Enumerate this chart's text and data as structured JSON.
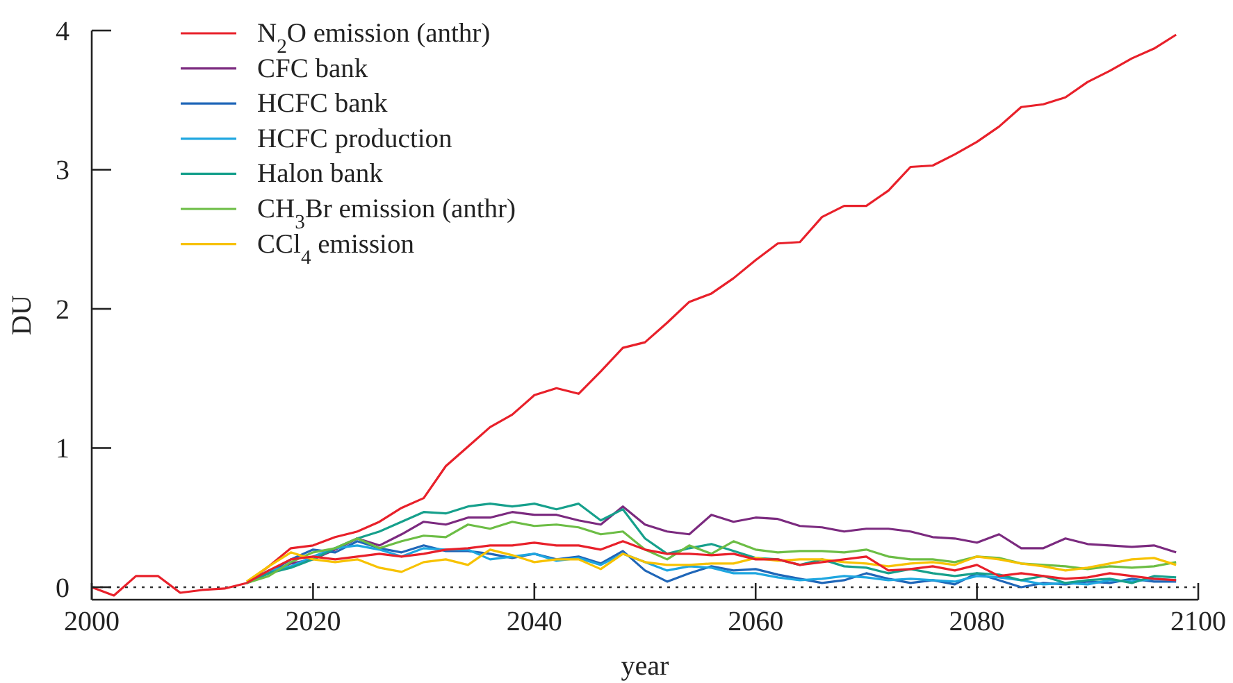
{
  "chart_data": {
    "type": "line",
    "xlabel": "year",
    "ylabel": "DU",
    "x": [
      2000,
      2002,
      2004,
      2006,
      2008,
      2010,
      2012,
      2014,
      2016,
      2018,
      2020,
      2022,
      2024,
      2026,
      2028,
      2030,
      2032,
      2034,
      2036,
      2038,
      2040,
      2042,
      2044,
      2046,
      2048,
      2050,
      2052,
      2054,
      2056,
      2058,
      2060,
      2062,
      2064,
      2066,
      2068,
      2070,
      2072,
      2074,
      2076,
      2078,
      2080,
      2082,
      2084,
      2086,
      2088,
      2090,
      2092,
      2094,
      2096,
      2098
    ],
    "series": [
      {
        "name": "N$_{2}$O emission (anthr)",
        "color": "#e8202a",
        "values": [
          0,
          -0.06,
          0.08,
          0.08,
          -0.04,
          -0.02,
          -0.01,
          0.03,
          0.15,
          0.28,
          0.3,
          0.36,
          0.4,
          0.47,
          0.57,
          0.64,
          0.87,
          1.01,
          1.15,
          1.24,
          1.38,
          1.43,
          1.39,
          1.55,
          1.72,
          1.76,
          1.9,
          2.05,
          2.11,
          2.22,
          2.35,
          2.47,
          2.48,
          2.66,
          2.74,
          2.74,
          2.85,
          3.02,
          3.03,
          3.11,
          3.2,
          3.31,
          3.45,
          3.47,
          3.52,
          3.63,
          3.71,
          3.8,
          3.87,
          3.97
        ]
      },
      {
        "name": "CFC bank",
        "color": "#7b2a7f",
        "values": [
          null,
          null,
          null,
          null,
          null,
          null,
          null,
          0.03,
          0.1,
          0.17,
          0.2,
          0.27,
          0.35,
          0.3,
          0.38,
          0.47,
          0.45,
          0.5,
          0.5,
          0.54,
          0.52,
          0.52,
          0.48,
          0.45,
          0.58,
          0.45,
          0.4,
          0.38,
          0.52,
          0.47,
          0.5,
          0.49,
          0.44,
          0.43,
          0.4,
          0.42,
          0.42,
          0.4,
          0.36,
          0.35,
          0.32,
          0.38,
          0.28,
          0.28,
          0.35,
          0.31,
          0.3,
          0.29,
          0.3,
          0.25
        ]
      },
      {
        "name": "HCFC bank",
        "color": "#1f66b8",
        "values": [
          null,
          null,
          null,
          null,
          null,
          null,
          null,
          0.03,
          0.1,
          0.2,
          0.27,
          0.25,
          0.33,
          0.28,
          0.25,
          0.3,
          0.26,
          0.26,
          0.24,
          0.21,
          0.24,
          0.2,
          0.22,
          0.17,
          0.26,
          0.12,
          0.04,
          0.1,
          0.15,
          0.12,
          0.13,
          0.09,
          0.06,
          0.03,
          0.05,
          0.1,
          0.06,
          0.03,
          0.05,
          0.02,
          0.1,
          0.05,
          0,
          0.03,
          0.02,
          0.04,
          0.03,
          0.06,
          0.04,
          0.04
        ]
      },
      {
        "name": "HCFC production",
        "color": "#1ea6e0",
        "values": [
          null,
          null,
          null,
          null,
          null,
          null,
          null,
          0.03,
          0.12,
          0.15,
          0.22,
          0.28,
          0.3,
          0.27,
          0.22,
          0.28,
          0.27,
          0.27,
          0.2,
          0.22,
          0.24,
          0.19,
          0.21,
          0.16,
          0.24,
          0.18,
          0.12,
          0.15,
          0.14,
          0.1,
          0.1,
          0.07,
          0.05,
          0.06,
          0.08,
          0.07,
          0.05,
          0.06,
          0.05,
          0.04,
          0.08,
          0.07,
          0.05,
          0.02,
          0.03,
          0.02,
          0.05,
          0.04,
          0.06,
          0.05
        ]
      },
      {
        "name": "Halon bank",
        "color": "#16a08c",
        "values": [
          null,
          null,
          null,
          null,
          null,
          null,
          null,
          0.03,
          0.1,
          0.14,
          0.2,
          0.28,
          0.35,
          0.4,
          0.47,
          0.54,
          0.53,
          0.58,
          0.6,
          0.58,
          0.6,
          0.56,
          0.6,
          0.48,
          0.56,
          0.35,
          0.24,
          0.28,
          0.31,
          0.26,
          0.21,
          0.2,
          0.16,
          0.2,
          0.15,
          0.14,
          0.1,
          0.13,
          0.1,
          0.08,
          0.1,
          0.09,
          0.05,
          0.08,
          0.03,
          0.05,
          0.06,
          0.03,
          0.08,
          0.07
        ]
      },
      {
        "name": "CH$_{3}$Br emission (anthr)",
        "color": "#6cbd45",
        "values": [
          null,
          null,
          null,
          null,
          null,
          null,
          null,
          0.03,
          0.08,
          0.18,
          0.25,
          0.28,
          0.35,
          0.28,
          0.33,
          0.37,
          0.36,
          0.45,
          0.42,
          0.47,
          0.44,
          0.45,
          0.43,
          0.38,
          0.4,
          0.27,
          0.2,
          0.3,
          0.24,
          0.33,
          0.27,
          0.25,
          0.26,
          0.26,
          0.25,
          0.27,
          0.22,
          0.2,
          0.2,
          0.18,
          0.22,
          0.21,
          0.17,
          0.16,
          0.15,
          0.13,
          0.15,
          0.14,
          0.15,
          0.18
        ]
      },
      {
        "name": "CCl$_{4}$ emission",
        "color": "#f7c200",
        "values": [
          null,
          null,
          null,
          null,
          null,
          null,
          null,
          0.04,
          0.15,
          0.25,
          0.2,
          0.18,
          0.2,
          0.14,
          0.11,
          0.18,
          0.2,
          0.16,
          0.27,
          0.23,
          0.18,
          0.2,
          0.2,
          0.13,
          0.24,
          0.18,
          0.16,
          0.16,
          0.17,
          0.17,
          0.21,
          0.19,
          0.2,
          0.2,
          0.18,
          0.17,
          0.15,
          0.17,
          0.18,
          0.16,
          0.22,
          0.2,
          0.17,
          0.15,
          0.12,
          0.14,
          0.17,
          0.2,
          0.21,
          0.16
        ]
      },
      {
        "color": "#e8202a",
        "values": [
          null,
          null,
          null,
          null,
          null,
          null,
          null,
          0.03,
          0.12,
          0.2,
          0.22,
          0.2,
          0.22,
          0.24,
          0.22,
          0.24,
          0.27,
          0.28,
          0.3,
          0.3,
          0.32,
          0.3,
          0.3,
          0.27,
          0.33,
          0.27,
          0.24,
          0.24,
          0.23,
          0.24,
          0.2,
          0.2,
          0.16,
          0.18,
          0.2,
          0.22,
          0.12,
          0.13,
          0.15,
          0.12,
          0.16,
          0.08,
          0.1,
          0.08,
          0.06,
          0.07,
          0.1,
          0.08,
          0.06,
          0.05
        ]
      }
    ],
    "xlim": [
      2000,
      2100
    ],
    "xticks": [
      2000,
      2020,
      2040,
      2060,
      2080,
      2100
    ],
    "ylim": [
      -0.09,
      4
    ],
    "yticks": [
      0,
      1,
      2,
      3,
      4
    ],
    "ref_lines": [
      {
        "axis": "y",
        "value": 0,
        "color": "#333333",
        "line_style": "dotted"
      }
    ],
    "legend": "top left",
    "grid": false,
    "marker": "none",
    "line_style": "solid"
  }
}
